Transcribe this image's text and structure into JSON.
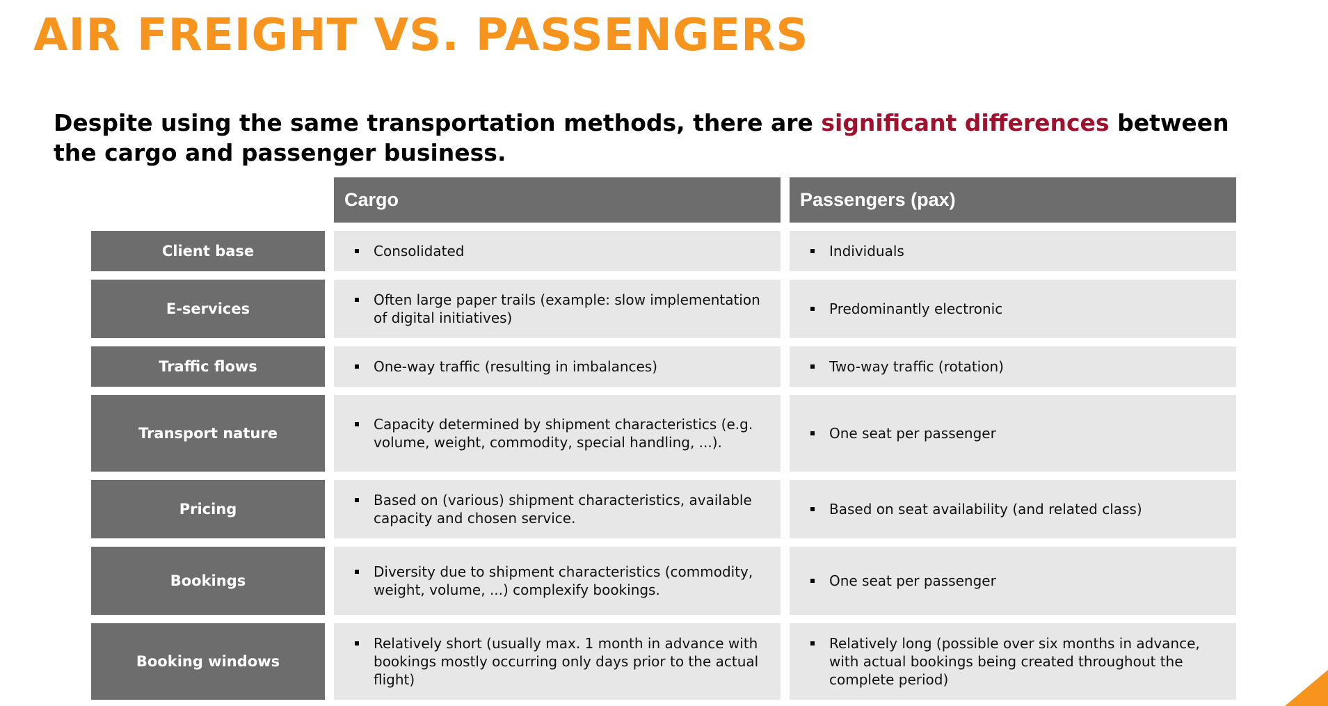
{
  "title": "AIR FREIGHT VS. PASSENGERS",
  "subtitle": {
    "before": "Despite using the same transportation methods, there are ",
    "highlight": "significant differences",
    "after": " between the cargo and passenger business."
  },
  "colors": {
    "title": "#f7941d",
    "highlight": "#a0112d",
    "header_bg": "#6d6d6d",
    "cell_bg": "#e7e7e7",
    "accent": "#f7941d"
  },
  "table": {
    "columns": [
      "Cargo",
      "Passengers (pax)"
    ],
    "rows": [
      {
        "label": "Client base",
        "cargo": "Consolidated",
        "pax": "Individuals"
      },
      {
        "label": "E-services",
        "cargo": "Often large paper trails (example: slow implementation of digital initiatives)",
        "pax": "Predominantly electronic"
      },
      {
        "label": "Traffic flows",
        "cargo": "One-way traffic (resulting in imbalances)",
        "pax": "Two-way traffic (rotation)"
      },
      {
        "label": "Transport nature",
        "cargo": "Capacity determined by shipment characteristics (e.g. volume, weight, commodity, special handling, ...).",
        "pax": "One seat per passenger"
      },
      {
        "label": "Pricing",
        "cargo": "Based on (various) shipment characteristics, available capacity and chosen service.",
        "pax": "Based on seat availability (and related class)"
      },
      {
        "label": "Bookings",
        "cargo": "Diversity due to shipment characteristics (commodity, weight, volume, ...) complexify bookings.",
        "pax": "One seat per passenger"
      },
      {
        "label": "Booking windows",
        "cargo": "Relatively short (usually max. 1 month in advance with bookings mostly occurring only days prior to the actual flight)",
        "pax": "Relatively long (possible over six months in advance, with actual bookings being created throughout the complete period)"
      }
    ]
  }
}
